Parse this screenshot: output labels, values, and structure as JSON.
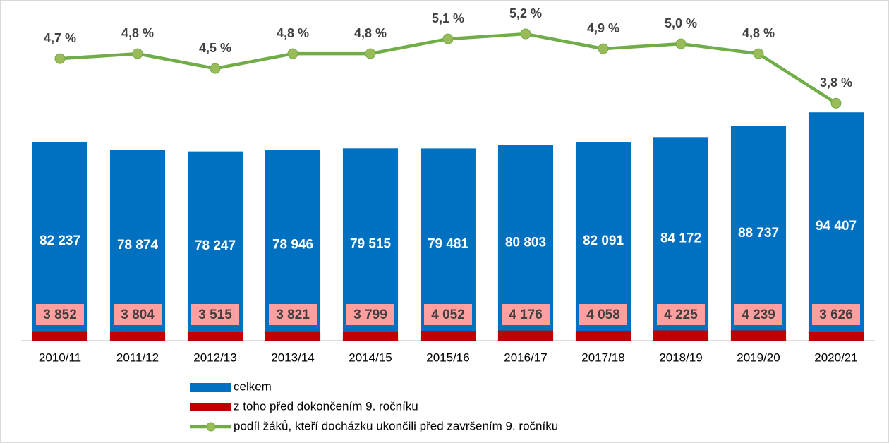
{
  "chart_data": {
    "type": "bar",
    "categories": [
      "2010/11",
      "2011/12",
      "2012/13",
      "2013/14",
      "2014/15",
      "2015/16",
      "2016/17",
      "2017/18",
      "2018/19",
      "2019/20",
      "2020/21"
    ],
    "series": [
      {
        "name": "celkem",
        "type": "bar",
        "color": "#0070c0",
        "values": [
          82237,
          78874,
          78247,
          78946,
          79515,
          79481,
          80803,
          82091,
          84172,
          88737,
          94407
        ],
        "value_labels": [
          "82 237",
          "78 874",
          "78 247",
          "78 946",
          "79 515",
          "79 481",
          "80 803",
          "82 091",
          "84 172",
          "88 737",
          "94 407"
        ]
      },
      {
        "name": "z toho před dokončením 9. ročníku",
        "type": "bar",
        "color": "#c00000",
        "values": [
          3852,
          3804,
          3515,
          3821,
          3799,
          4052,
          4176,
          4058,
          4225,
          4239,
          3626
        ],
        "value_labels": [
          "3 852",
          "3 804",
          "3 515",
          "3 821",
          "3 799",
          "4 052",
          "4 176",
          "4 058",
          "4 225",
          "4 239",
          "3 626"
        ]
      },
      {
        "name": "podíl žáků, kteří docházku ukončili před završením 9. ročníku",
        "type": "line",
        "axis": "y2",
        "color": "#70ad47",
        "values": [
          4.7,
          4.8,
          4.5,
          4.8,
          4.8,
          5.1,
          5.2,
          4.9,
          5.0,
          4.8,
          3.8
        ],
        "value_labels": [
          "4,7 %",
          "4,8 %",
          "4,5 %",
          "4,8 %",
          "4,8 %",
          "5,1 %",
          "5,2 %",
          "4,9 %",
          "5,0 %",
          "4,8 %",
          "3,8 %"
        ]
      }
    ],
    "ylim": [
      0,
      135000
    ],
    "y2lim": [
      -1,
      5.6
    ],
    "legend": "bottom"
  }
}
